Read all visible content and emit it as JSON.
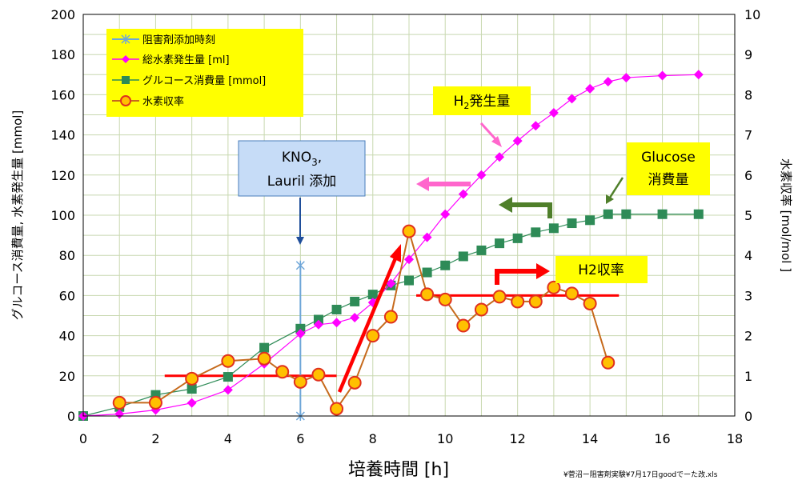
{
  "chart_data": {
    "type": "line",
    "xlabel": "培養時間 [h]",
    "ylabel_left": "グルコース消費量, 水素発生量 [mmol]",
    "ylabel_right": "水素収率 [mol/mol ]",
    "xlim": [
      0,
      18
    ],
    "xticks": [
      0,
      2,
      4,
      6,
      8,
      10,
      12,
      14,
      16,
      18
    ],
    "ylim_left": [
      0,
      200
    ],
    "yticks_left": [
      0,
      20,
      40,
      60,
      80,
      100,
      120,
      140,
      160,
      180,
      200
    ],
    "ylim_right": [
      0,
      10
    ],
    "yticks_right": [
      0,
      1,
      2,
      3,
      4,
      5,
      6,
      7,
      8,
      9,
      10
    ],
    "grid": true,
    "legend_position": "top-left",
    "series": [
      {
        "name": "阻害剤添加時刻",
        "axis": "left",
        "color": "#6ea6d8",
        "marker": "star",
        "x": [
          6,
          6
        ],
        "y": [
          0,
          75
        ]
      },
      {
        "name": "総水素発生量 [ml]",
        "axis": "left",
        "color": "#ff00ff",
        "marker": "diamond",
        "x": [
          0,
          1,
          2,
          3,
          4,
          5,
          6,
          6.5,
          7,
          7.5,
          8,
          8.5,
          9,
          9.5,
          10,
          10.5,
          11,
          11.5,
          12,
          12.5,
          13,
          13.5,
          14,
          14.5,
          15,
          16,
          17
        ],
        "y": [
          0,
          1,
          3,
          6.5,
          13,
          26,
          41,
          45.5,
          46.5,
          49,
          56.5,
          66,
          78,
          89,
          100.5,
          110.5,
          120,
          129,
          137,
          144.5,
          151,
          158,
          163,
          166.5,
          168.5,
          169.5,
          170
        ]
      },
      {
        "name": "グルコース消費量 [mmol]",
        "axis": "left",
        "color": "#2e8b57",
        "marker": "square",
        "x": [
          0,
          1,
          2,
          3,
          4,
          5,
          6,
          6.5,
          7,
          7.5,
          8,
          8.5,
          9,
          9.5,
          10,
          10.5,
          11,
          11.5,
          12,
          12.5,
          13,
          13.5,
          14,
          14.5,
          15,
          16,
          17
        ],
        "y": [
          0,
          4.5,
          10.5,
          13.5,
          19.5,
          34,
          43.5,
          48,
          53,
          57,
          60.5,
          65,
          67.5,
          71.5,
          75,
          79.5,
          82.5,
          86,
          88.5,
          91.5,
          93.5,
          96,
          97.5,
          100.5,
          100.5,
          100.5,
          100.5
        ]
      },
      {
        "name": "水素収率",
        "axis": "right",
        "color": "#c66a1c",
        "marker": "circle",
        "x": [
          1,
          2,
          3,
          4,
          5,
          5.5,
          6,
          6.5,
          7,
          7.5,
          8,
          8.5,
          9,
          9.5,
          10,
          10.5,
          11,
          11.5,
          12,
          12.5,
          13,
          13.5,
          14,
          14.5
        ],
        "y": [
          0.33,
          0.33,
          0.93,
          1.37,
          1.43,
          1.1,
          0.85,
          1.03,
          0.18,
          0.83,
          2.0,
          2.47,
          4.6,
          3.03,
          2.9,
          2.25,
          2.65,
          2.97,
          2.85,
          2.85,
          3.2,
          3.05,
          2.8,
          1.33
        ]
      }
    ],
    "annotations": {
      "inhibitor_box": [
        "KNO",
        "3",
        ",",
        "Lauril 添加"
      ],
      "h2_generation": [
        "H",
        "2",
        "発生量"
      ],
      "glucose": [
        "Glucose",
        "消費量"
      ],
      "h2_yield": "H2収率"
    },
    "guide_lines": {
      "color": "#ff0000",
      "yield_level_1": {
        "x": [
          2.25,
          7.0
        ],
        "y": 1.0
      },
      "yield_level_2": {
        "x": [
          9.2,
          14.8
        ],
        "y": 3.0
      }
    },
    "colors": {
      "annotation_fill": "#ffff00",
      "inhibitor_box_fill": "#c6dcf7",
      "plot_background": "#ffffff",
      "grid": "#c8d8b0",
      "h2_arrow": "#ff66cc",
      "glucose_arrow": "#4f7f2a",
      "red_arrow": "#ff0000",
      "inhibitor_arrow": "#1f4e9a"
    }
  },
  "footer": {
    "file_note": "¥菅沼ー阻害剤実験¥7月17日goodでーた改.xls"
  }
}
